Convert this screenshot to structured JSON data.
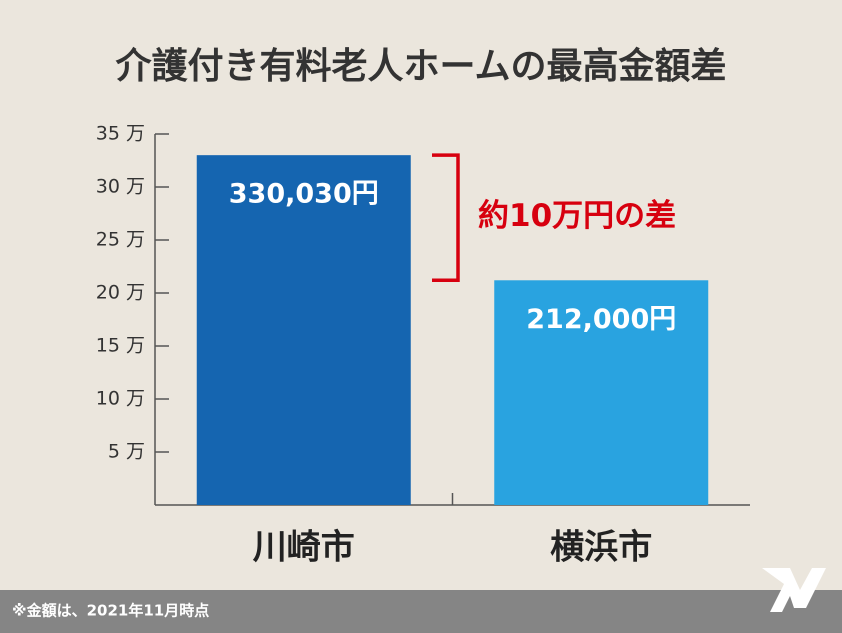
{
  "chart_data": {
    "type": "bar",
    "title": "介護付き有料老人ホームの最高金額差",
    "categories": [
      "川崎市",
      "横浜市"
    ],
    "values": [
      330030,
      212000
    ],
    "value_labels": [
      "330,030円",
      "212,000円"
    ],
    "colors": [
      "#1565b0",
      "#29a3e0"
    ],
    "ylim": [
      0,
      350000
    ],
    "yticks": [
      {
        "value": 50000,
        "label": "5 万"
      },
      {
        "value": 100000,
        "label": "10 万"
      },
      {
        "value": 150000,
        "label": "15 万"
      },
      {
        "value": 200000,
        "label": "20 万"
      },
      {
        "value": 250000,
        "label": "25 万"
      },
      {
        "value": 300000,
        "label": "30 万"
      },
      {
        "value": 350000,
        "label": "35 万"
      }
    ],
    "annotation": "約10万円の差",
    "annotation_color": "#d7000f",
    "footnote": "※金額は、2021年11月時点"
  }
}
